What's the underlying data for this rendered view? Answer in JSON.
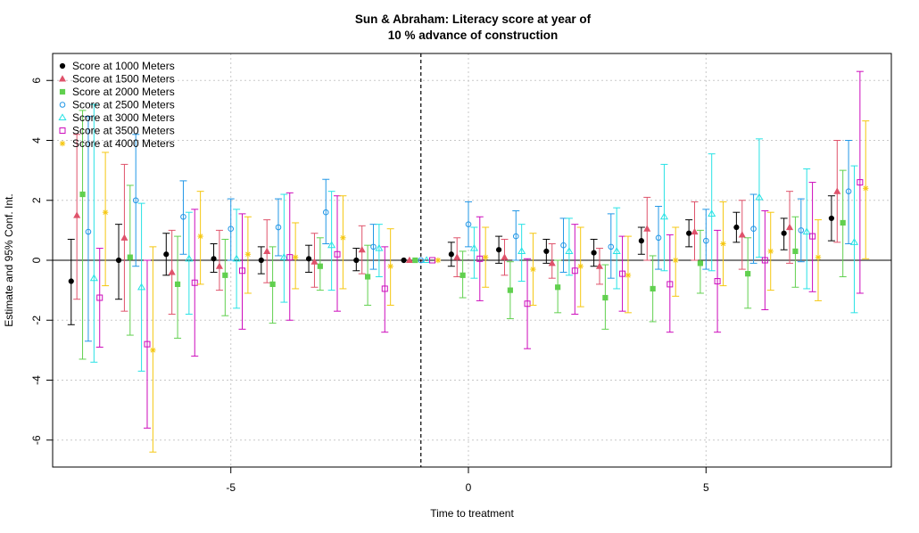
{
  "chart_data": {
    "type": "scatter",
    "title_line1": "Sun & Abraham: Literacy score  at year of",
    "title_line2": "10 % advance of construction",
    "xlabel": "Time to treatment",
    "ylabel": "Estimate and 95% Conf. Int.",
    "xlim": [
      -8.75,
      8.9
    ],
    "ylim": [
      -6.9,
      6.9
    ],
    "x_ticks": [
      -5,
      0,
      5
    ],
    "y_ticks": [
      -6,
      -4,
      -2,
      0,
      2,
      4,
      6
    ],
    "x_tick_labels": [
      "-5",
      "0",
      "5"
    ],
    "y_tick_labels": [
      "-6",
      "-4",
      "-2",
      "0",
      "2",
      "4",
      "6"
    ],
    "grid": true,
    "reference_line_x": -1,
    "legend_position": "top-left",
    "periods": [
      -8,
      -7,
      -6,
      -5,
      -4,
      -3,
      -2,
      -1,
      0,
      1,
      2,
      3,
      4,
      5,
      6,
      7,
      8
    ],
    "offsets": [
      -0.36,
      -0.24,
      -0.12,
      0,
      0.12,
      0.24,
      0.36
    ],
    "series": [
      {
        "name": "Score at 1000 Meters",
        "color": "#000000",
        "marker": "filled-circle",
        "estimate": [
          -0.7,
          0.0,
          0.2,
          0.05,
          0.0,
          0.05,
          0.0,
          0.0,
          0.2,
          0.35,
          0.3,
          0.25,
          0.65,
          0.9,
          1.1,
          0.9,
          1.4
        ],
        "lower": [
          -2.15,
          -1.3,
          -0.5,
          -0.4,
          -0.45,
          -0.4,
          -0.35,
          0.0,
          -0.2,
          -0.1,
          -0.1,
          -0.2,
          0.2,
          0.45,
          0.6,
          0.35,
          0.65
        ],
        "upper": [
          0.7,
          1.2,
          0.9,
          0.55,
          0.45,
          0.5,
          0.4,
          0.0,
          0.6,
          0.8,
          0.7,
          0.7,
          1.1,
          1.35,
          1.6,
          1.4,
          2.15
        ]
      },
      {
        "name": "Score at 1500 Meters",
        "color": "#DF536B",
        "marker": "triangle",
        "estimate": [
          1.5,
          0.75,
          -0.4,
          -0.2,
          0.3,
          -0.05,
          0.35,
          0.0,
          0.1,
          0.1,
          -0.1,
          -0.2,
          1.05,
          0.95,
          0.85,
          1.1,
          2.3
        ],
        "lower": [
          -1.3,
          -1.7,
          -1.8,
          -1.0,
          -0.75,
          -0.9,
          -0.45,
          0.0,
          -0.55,
          -0.5,
          -0.6,
          -0.8,
          0.0,
          0.0,
          -0.3,
          -0.1,
          0.6
        ],
        "upper": [
          4.2,
          3.2,
          1.0,
          1.0,
          1.35,
          0.9,
          1.15,
          0.0,
          0.75,
          0.7,
          0.55,
          0.4,
          2.1,
          1.95,
          2.0,
          2.3,
          4.0
        ]
      },
      {
        "name": "Score at 2000 Meters",
        "color": "#61D04F",
        "marker": "filled-square",
        "estimate": [
          2.2,
          0.1,
          -0.8,
          -0.5,
          -0.8,
          -0.2,
          -0.55,
          0.0,
          -0.5,
          -1.0,
          -0.9,
          -1.25,
          -0.95,
          -0.1,
          -0.45,
          0.3,
          1.25
        ],
        "lower": [
          -3.3,
          -2.5,
          -2.6,
          -1.85,
          -2.1,
          -1.0,
          -1.5,
          0.0,
          -1.25,
          -1.95,
          -1.75,
          -2.3,
          -2.05,
          -1.1,
          -1.6,
          -0.9,
          -0.55
        ],
        "upper": [
          5.0,
          2.5,
          0.8,
          0.7,
          0.45,
          0.75,
          0.5,
          0.0,
          0.3,
          -0.05,
          0.0,
          -0.15,
          0.15,
          1.0,
          0.75,
          1.45,
          3.0
        ]
      },
      {
        "name": "Score at 2500 Meters",
        "color": "#2297E6",
        "marker": "open-circle",
        "estimate": [
          0.95,
          2.0,
          1.45,
          1.05,
          1.1,
          1.6,
          0.45,
          0.0,
          1.2,
          0.8,
          0.5,
          0.45,
          0.75,
          0.65,
          1.05,
          1.0,
          2.3
        ],
        "lower": [
          -2.7,
          -0.2,
          0.2,
          0.0,
          0.15,
          0.55,
          -0.3,
          0.0,
          0.45,
          0.0,
          -0.4,
          -0.6,
          -0.3,
          -0.3,
          -0.1,
          -0.05,
          0.55
        ],
        "upper": [
          4.8,
          4.2,
          2.65,
          2.05,
          2.05,
          2.7,
          1.2,
          0.0,
          1.95,
          1.65,
          1.4,
          1.55,
          1.8,
          1.7,
          2.2,
          2.05,
          4.0
        ]
      },
      {
        "name": "Score at 3000 Meters",
        "color": "#28E2E5",
        "marker": "triangle-open",
        "estimate": [
          -0.6,
          -0.9,
          0.05,
          0.05,
          0.1,
          0.5,
          0.4,
          0.0,
          0.4,
          0.3,
          0.3,
          0.3,
          1.45,
          1.55,
          2.1,
          0.95,
          0.6
        ],
        "lower": [
          -3.4,
          -3.7,
          -1.8,
          -1.6,
          -1.4,
          -1.0,
          -0.55,
          0.0,
          -0.6,
          -0.7,
          -0.5,
          -0.95,
          -0.35,
          -0.35,
          0.1,
          -0.95,
          -1.75
        ],
        "upper": [
          5.2,
          1.9,
          1.6,
          1.7,
          2.2,
          2.3,
          1.2,
          0.0,
          1.1,
          1.2,
          1.4,
          1.75,
          3.2,
          3.55,
          4.05,
          3.05,
          3.15
        ]
      },
      {
        "name": "Score at 3500 Meters",
        "color": "#CD0BBC",
        "marker": "open-square",
        "estimate": [
          -1.25,
          -2.8,
          -0.75,
          -0.35,
          0.1,
          0.2,
          -0.95,
          0.0,
          0.05,
          -1.45,
          -0.35,
          -0.45,
          -0.8,
          -0.7,
          0.0,
          0.8,
          2.6
        ],
        "lower": [
          -2.9,
          -5.6,
          -3.2,
          -2.3,
          -2.0,
          -1.7,
          -2.4,
          0.0,
          -1.35,
          -2.95,
          -1.8,
          -1.7,
          -2.4,
          -2.4,
          -1.65,
          -1.05,
          -1.1
        ],
        "upper": [
          0.4,
          0.0,
          1.7,
          1.55,
          2.25,
          2.15,
          0.45,
          0.0,
          1.45,
          0.05,
          1.2,
          0.8,
          0.85,
          1.0,
          1.65,
          2.6,
          6.3
        ]
      },
      {
        "name": "Score at 4000 Meters",
        "color": "#F5C710",
        "marker": "star",
        "estimate": [
          1.6,
          -3.0,
          0.8,
          0.2,
          0.1,
          0.75,
          -0.2,
          0.0,
          0.1,
          -0.3,
          -0.2,
          -0.5,
          0.0,
          0.55,
          0.3,
          0.1,
          2.4
        ],
        "lower": [
          -0.85,
          -6.4,
          -0.8,
          -1.1,
          -0.95,
          -0.95,
          -1.5,
          0.0,
          -0.9,
          -1.5,
          -1.55,
          -1.75,
          -1.2,
          -0.85,
          -1.0,
          -1.35,
          0.05
        ],
        "upper": [
          3.6,
          0.45,
          2.3,
          1.45,
          1.25,
          2.15,
          1.05,
          0.0,
          1.1,
          0.9,
          1.1,
          0.8,
          1.1,
          1.95,
          1.6,
          1.35,
          4.65
        ]
      }
    ]
  }
}
